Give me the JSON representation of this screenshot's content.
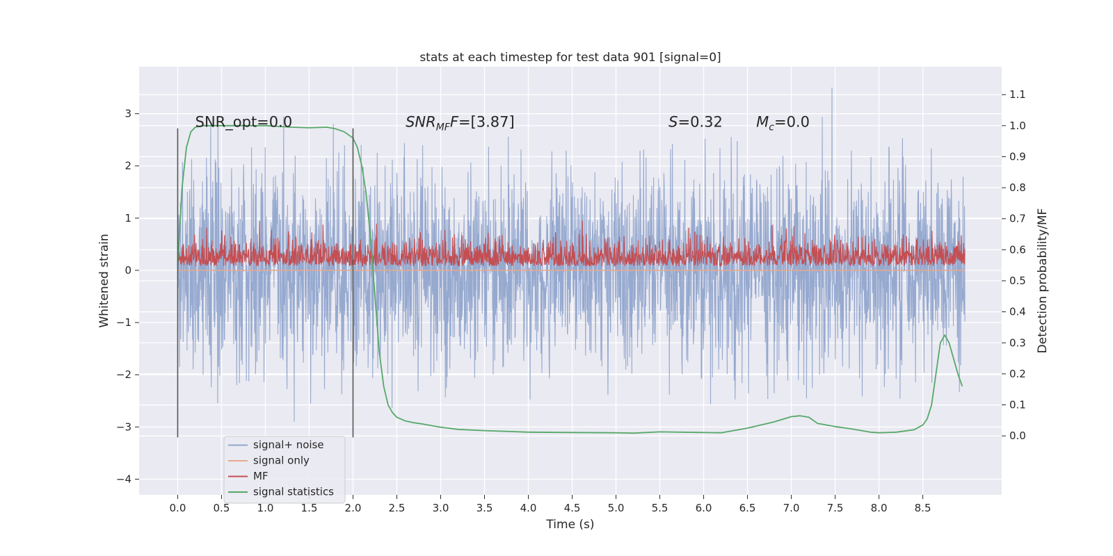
{
  "chart_data": {
    "type": "line",
    "title": "stats at each timestep for test data 901 [signal=0]",
    "xlabel": "Time (s)",
    "ylabel": "Whitened strain",
    "y2label": "Detection probability/MF",
    "xlim": [
      -0.44,
      9.4
    ],
    "ylim": [
      -4.3,
      3.9
    ],
    "y2lim": [
      -0.19,
      1.19
    ],
    "xticks": [
      "0.0",
      "0.5",
      "1.0",
      "1.5",
      "2.0",
      "2.5",
      "3.0",
      "3.5",
      "4.0",
      "4.5",
      "5.0",
      "5.5",
      "6.0",
      "6.5",
      "7.0",
      "7.5",
      "8.0",
      "8.5"
    ],
    "yticks": [
      "3",
      "2",
      "1",
      "0",
      "−1",
      "−2",
      "−3",
      "−4"
    ],
    "y2ticks": [
      "1.1",
      "1.0",
      "0.9",
      "0.8",
      "0.7",
      "0.6",
      "0.5",
      "0.4",
      "0.3",
      "0.2",
      "0.1",
      "0.0"
    ],
    "annotations": [
      {
        "name": "snr-opt",
        "text": "SNR_opt=0.0",
        "x": 0.2
      },
      {
        "name": "snr-mf",
        "text": "SNR",
        "sub": "MF",
        "rest": "F=[3.87]",
        "x": 2.6
      },
      {
        "name": "s-stat",
        "text": "S",
        "rest": "=0.32",
        "x": 5.6
      },
      {
        "name": "chirp-mass",
        "text": "M",
        "sub": "c",
        "rest": "=0.0",
        "x": 6.6
      }
    ],
    "vlines": [
      0.0,
      2.0
    ],
    "legend": {
      "position": "lower-left",
      "entries": [
        {
          "label": "signal+ noise",
          "color": "#91a5cc"
        },
        {
          "label": "signal only",
          "color": "#e8a98c"
        },
        {
          "label": "MF",
          "color": "#c44e52"
        },
        {
          "label": "signal statistics",
          "color": "#55a868"
        }
      ]
    },
    "series": [
      {
        "name": "signal statistics",
        "axis": "right",
        "color": "#55a868",
        "x": [
          0.0,
          0.05,
          0.1,
          0.15,
          0.2,
          0.3,
          0.5,
          1.0,
          1.3,
          1.5,
          1.7,
          1.8,
          1.9,
          2.0,
          2.05,
          2.1,
          2.15,
          2.2,
          2.25,
          2.3,
          2.35,
          2.4,
          2.45,
          2.5,
          2.6,
          2.7,
          2.8,
          3.0,
          3.2,
          3.5,
          4.0,
          4.5,
          5.0,
          5.2,
          5.5,
          6.0,
          6.2,
          6.5,
          6.8,
          7.0,
          7.1,
          7.2,
          7.3,
          7.5,
          7.7,
          7.9,
          8.0,
          8.2,
          8.4,
          8.5,
          8.55,
          8.6,
          8.65,
          8.7,
          8.75,
          8.8,
          8.85,
          8.9,
          8.95
        ],
        "values": [
          0.55,
          0.8,
          0.93,
          0.98,
          0.995,
          1.0,
          1.0,
          1.0,
          0.995,
          0.993,
          0.995,
          0.99,
          0.98,
          0.96,
          0.93,
          0.87,
          0.78,
          0.64,
          0.45,
          0.27,
          0.16,
          0.1,
          0.075,
          0.06,
          0.048,
          0.042,
          0.038,
          0.028,
          0.021,
          0.017,
          0.012,
          0.011,
          0.01,
          0.009,
          0.013,
          0.011,
          0.01,
          0.025,
          0.045,
          0.062,
          0.065,
          0.06,
          0.04,
          0.03,
          0.022,
          0.012,
          0.01,
          0.012,
          0.02,
          0.035,
          0.055,
          0.1,
          0.2,
          0.3,
          0.325,
          0.3,
          0.25,
          0.2,
          0.16
        ]
      },
      {
        "name": "signal+ noise",
        "axis": "left",
        "color": "#91a5cc",
        "x_range": [
          0.0,
          8.98
        ],
        "envelope": [
          -2.9,
          3.5
        ]
      },
      {
        "name": "MF",
        "axis": "left",
        "color": "#c44e52",
        "x_range": [
          0.0,
          8.98
        ],
        "envelope": [
          0.0,
          0.95
        ]
      },
      {
        "name": "signal only",
        "axis": "left",
        "color": "#e8a98c",
        "x_range": [
          0.0,
          8.98
        ],
        "values_const": 0.0
      }
    ]
  }
}
